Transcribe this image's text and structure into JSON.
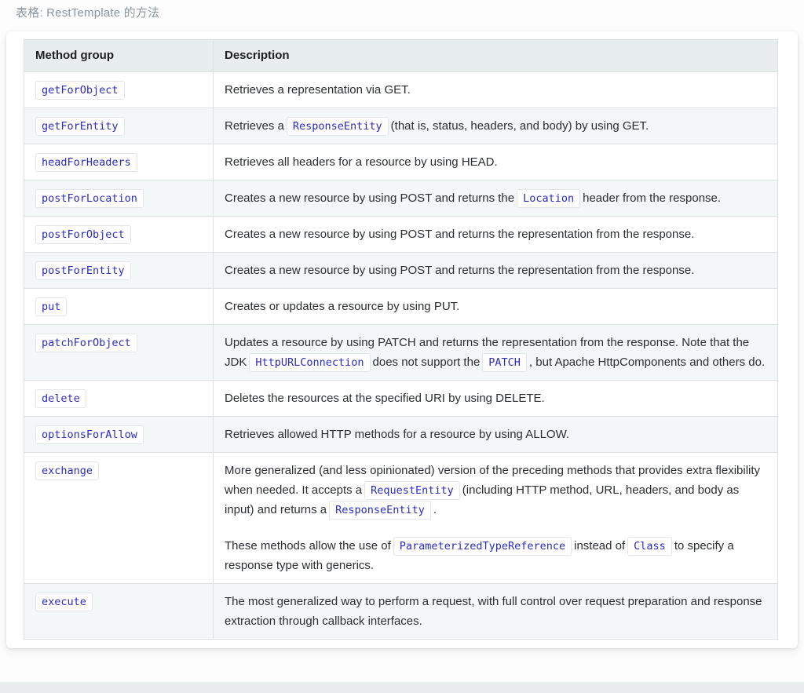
{
  "caption": "表格: RestTemplate 的方法",
  "colors": {
    "code_text": "#2b2bc0",
    "header_bg": "#e8edee",
    "stripe_bg": "#f3f7f8",
    "border": "#dce2e4",
    "caption_text": "#8b95a0"
  },
  "table": {
    "headers": [
      "Method group",
      "Description"
    ],
    "rows": [
      {
        "method": "getForObject",
        "description": [
          [
            {
              "text": "Retrieves a representation via GET."
            }
          ]
        ]
      },
      {
        "method": "getForEntity",
        "description": [
          [
            {
              "text": "Retrieves a"
            },
            {
              "code": "ResponseEntity"
            },
            {
              "text": "(that is, status, headers, and body) by using GET."
            }
          ]
        ]
      },
      {
        "method": "headForHeaders",
        "description": [
          [
            {
              "text": "Retrieves all headers for a resource by using HEAD."
            }
          ]
        ]
      },
      {
        "method": "postForLocation",
        "description": [
          [
            {
              "text": "Creates a new resource by using POST and returns the"
            },
            {
              "code": "Location"
            },
            {
              "text": "header from the response."
            }
          ]
        ]
      },
      {
        "method": "postForObject",
        "description": [
          [
            {
              "text": "Creates a new resource by using POST and returns the representation from the response."
            }
          ]
        ]
      },
      {
        "method": "postForEntity",
        "description": [
          [
            {
              "text": "Creates a new resource by using POST and returns the representation from the response."
            }
          ]
        ]
      },
      {
        "method": "put",
        "description": [
          [
            {
              "text": "Creates or updates a resource by using PUT."
            }
          ]
        ]
      },
      {
        "method": "patchForObject",
        "description": [
          [
            {
              "text": "Updates a resource by using PATCH and returns the representation from the response. Note that the JDK"
            },
            {
              "code": "HttpURLConnection"
            },
            {
              "text": "does not support the"
            },
            {
              "code": "PATCH"
            },
            {
              "text": ", but Apache HttpComponents and others do."
            }
          ]
        ]
      },
      {
        "method": "delete",
        "description": [
          [
            {
              "text": "Deletes the resources at the specified URI by using DELETE."
            }
          ]
        ]
      },
      {
        "method": "optionsForAllow",
        "description": [
          [
            {
              "text": "Retrieves allowed HTTP methods for a resource by using ALLOW."
            }
          ]
        ]
      },
      {
        "method": "exchange",
        "description": [
          [
            {
              "text": "More generalized (and less opinionated) version of the preceding methods that provides extra flexibility when needed. It accepts a"
            },
            {
              "code": "RequestEntity"
            },
            {
              "text": "(including HTTP method, URL, headers, and body as input) and returns a"
            },
            {
              "code": "ResponseEntity"
            },
            {
              "text": "."
            }
          ],
          [
            {
              "text": "These methods allow the use of"
            },
            {
              "code": "ParameterizedTypeReference"
            },
            {
              "text": "instead of"
            },
            {
              "code": "Class"
            },
            {
              "text": "to specify a response type with generics."
            }
          ]
        ]
      },
      {
        "method": "execute",
        "description": [
          [
            {
              "text": "The most generalized way to perform a request, with full control over request preparation and response extraction through callback interfaces."
            }
          ]
        ]
      }
    ]
  }
}
